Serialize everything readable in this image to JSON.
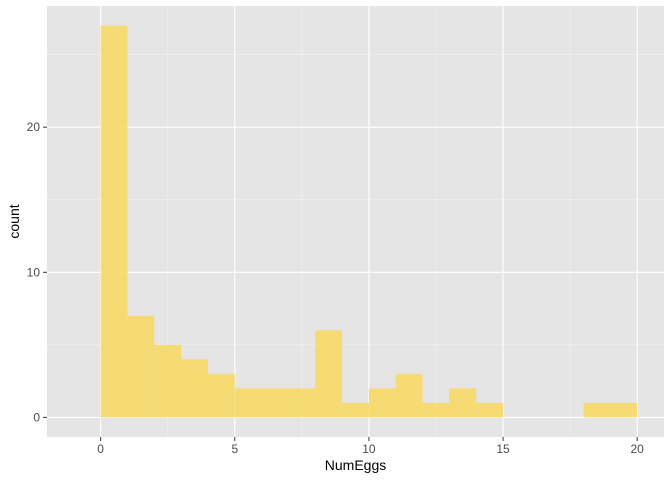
{
  "chart_data": {
    "type": "bar",
    "subtype": "histogram",
    "xlabel": "NumEggs",
    "ylabel": "count",
    "xlim": [
      -2,
      21
    ],
    "ylim": [
      -1.35,
      28.35
    ],
    "x_ticks": [
      0,
      5,
      10,
      15,
      20
    ],
    "y_ticks": [
      0,
      10,
      20
    ],
    "grid": true,
    "bin_width": 1,
    "bins": [
      {
        "x0": 0,
        "x1": 1,
        "count": 27
      },
      {
        "x0": 1,
        "x1": 2,
        "count": 7
      },
      {
        "x0": 2,
        "x1": 3,
        "count": 5
      },
      {
        "x0": 3,
        "x1": 4,
        "count": 4
      },
      {
        "x0": 4,
        "x1": 5,
        "count": 3
      },
      {
        "x0": 5,
        "x1": 6,
        "count": 2
      },
      {
        "x0": 6,
        "x1": 7,
        "count": 2
      },
      {
        "x0": 7,
        "x1": 8,
        "count": 2
      },
      {
        "x0": 8,
        "x1": 9,
        "count": 6
      },
      {
        "x0": 9,
        "x1": 10,
        "count": 1
      },
      {
        "x0": 10,
        "x1": 11,
        "count": 2
      },
      {
        "x0": 11,
        "x1": 12,
        "count": 3
      },
      {
        "x0": 12,
        "x1": 13,
        "count": 1
      },
      {
        "x0": 13,
        "x1": 14,
        "count": 2
      },
      {
        "x0": 14,
        "x1": 15,
        "count": 1
      },
      {
        "x0": 15,
        "x1": 16,
        "count": 0
      },
      {
        "x0": 16,
        "x1": 17,
        "count": 0
      },
      {
        "x0": 17,
        "x1": 18,
        "count": 0
      },
      {
        "x0": 18,
        "x1": 19,
        "count": 1
      },
      {
        "x0": 19,
        "x1": 20,
        "count": 1
      }
    ],
    "colors": {
      "panel_background": "#e5e5e5",
      "grid_major": "#ffffff",
      "bar_fill": "#f6d965",
      "axis_text": "#4d4d4d",
      "tick_mark": "#333333",
      "title_text": "#000000"
    }
  }
}
